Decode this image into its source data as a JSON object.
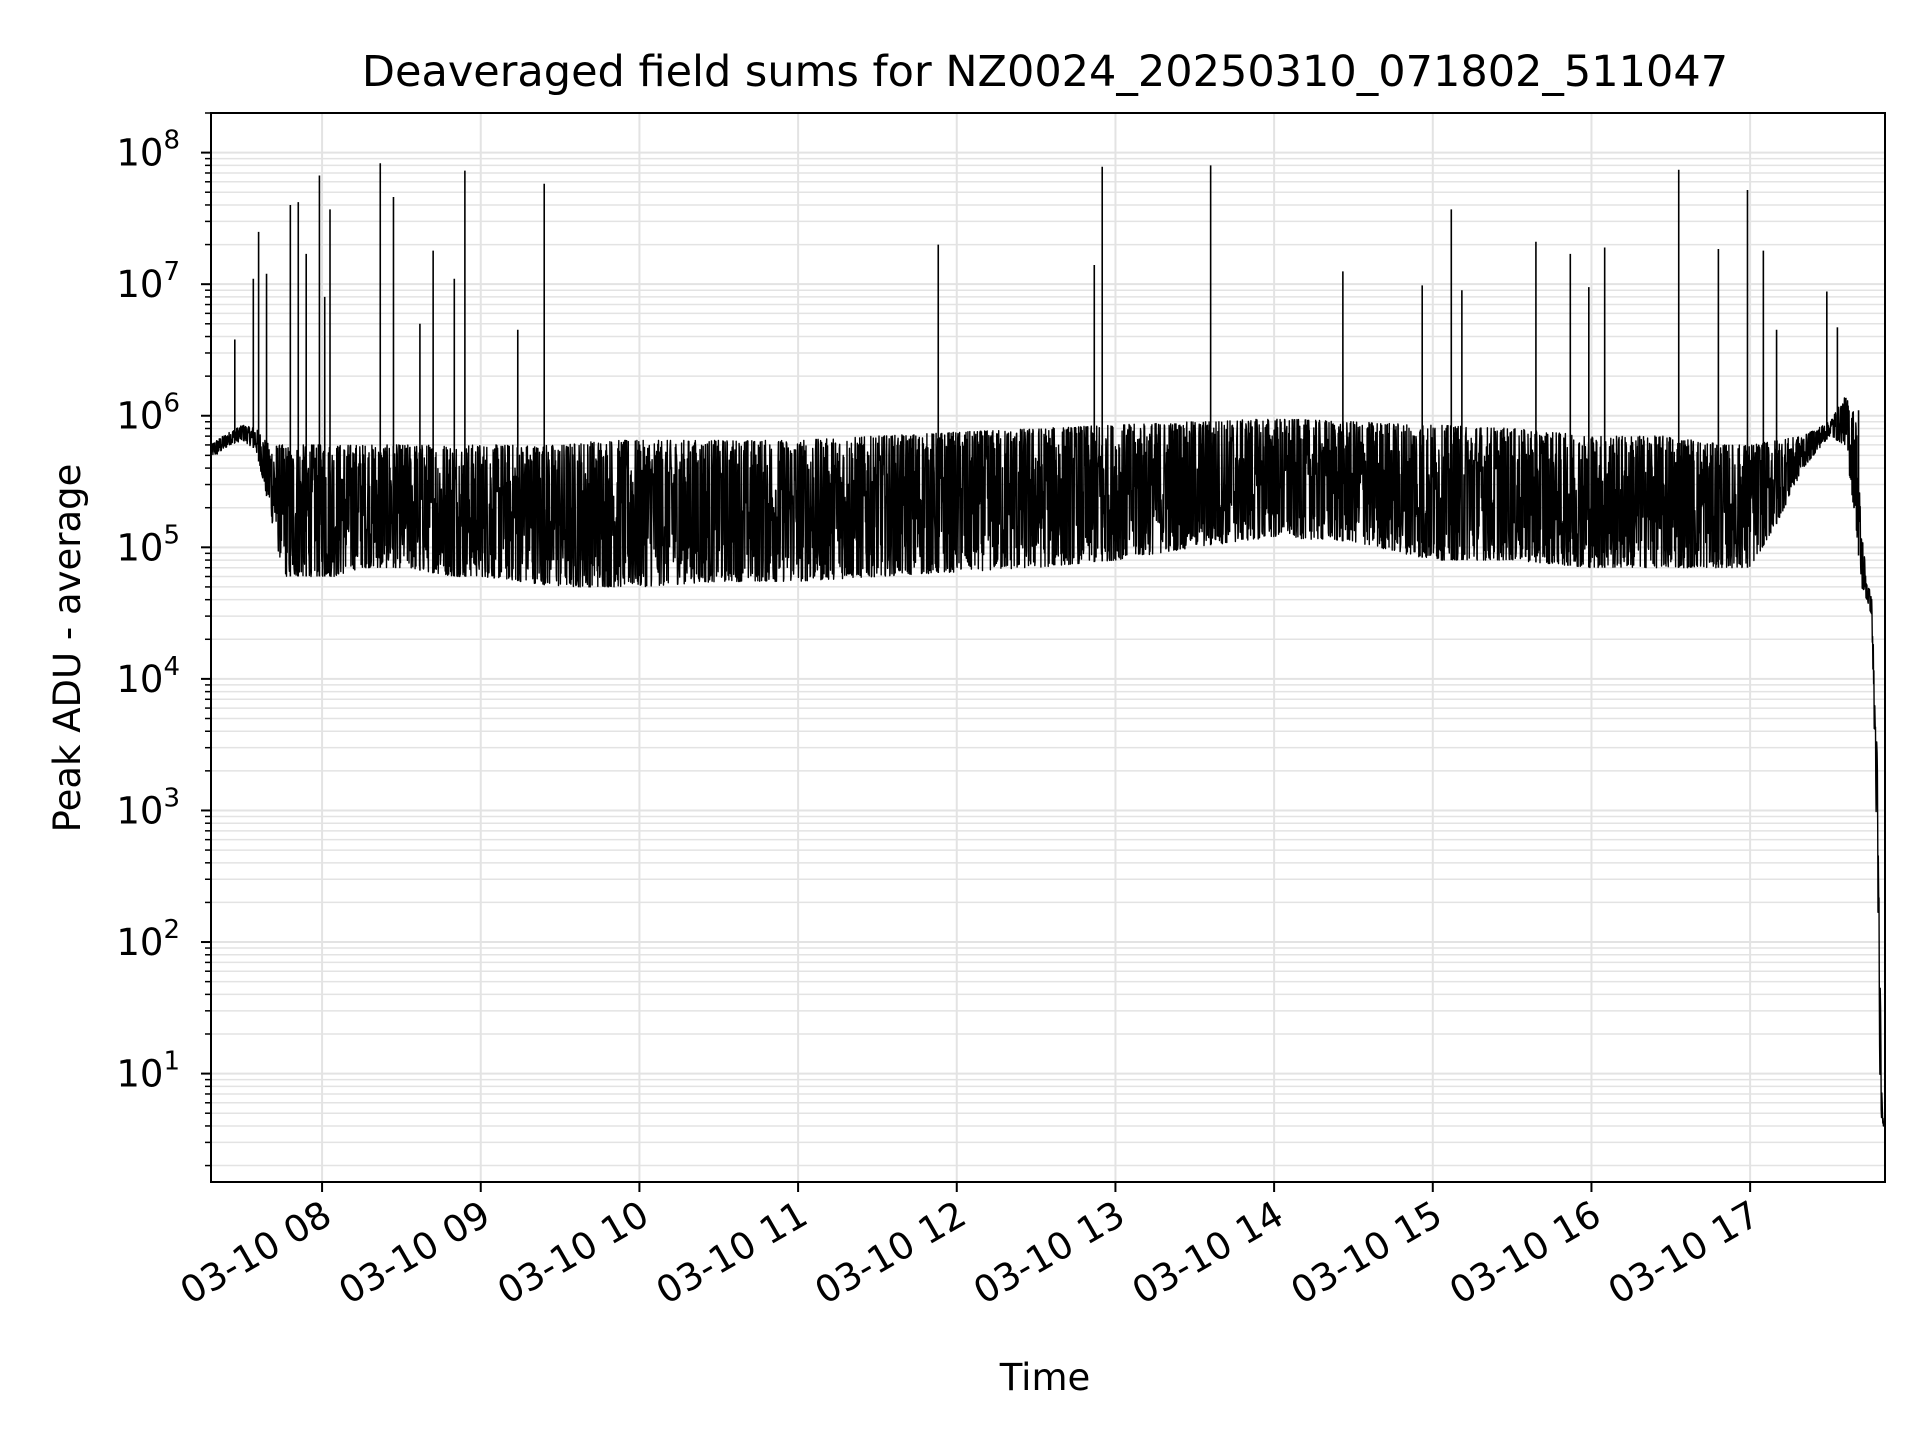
{
  "chart_data": {
    "type": "line",
    "title": "Deaveraged field sums for NZ0024_20250310_071802_511047",
    "xlabel": "Time",
    "ylabel": "Peak ADU - average",
    "yscale": "log",
    "ylim": [
      1.5,
      200000000
    ],
    "xlim": [
      "2025-03-10 07:18",
      "2025-03-10 17:51"
    ],
    "grid": true,
    "line_color": "#000000",
    "grid_color": "#e3e3e3",
    "x_ticks": [
      {
        "value": "2025-03-10 08:00",
        "label": "03-10 08"
      },
      {
        "value": "2025-03-10 09:00",
        "label": "03-10 09"
      },
      {
        "value": "2025-03-10 10:00",
        "label": "03-10 10"
      },
      {
        "value": "2025-03-10 11:00",
        "label": "03-10 11"
      },
      {
        "value": "2025-03-10 12:00",
        "label": "03-10 12"
      },
      {
        "value": "2025-03-10 13:00",
        "label": "03-10 13"
      },
      {
        "value": "2025-03-10 14:00",
        "label": "03-10 14"
      },
      {
        "value": "2025-03-10 15:00",
        "label": "03-10 15"
      },
      {
        "value": "2025-03-10 16:00",
        "label": "03-10 16"
      },
      {
        "value": "2025-03-10 17:00",
        "label": "03-10 17"
      }
    ],
    "y_ticks": [
      {
        "value": 10,
        "base": "10",
        "exp": "1"
      },
      {
        "value": 100,
        "base": "10",
        "exp": "2"
      },
      {
        "value": 1000,
        "base": "10",
        "exp": "3"
      },
      {
        "value": 10000,
        "base": "10",
        "exp": "4"
      },
      {
        "value": 100000,
        "base": "10",
        "exp": "5"
      },
      {
        "value": 1000000,
        "base": "10",
        "exp": "6"
      },
      {
        "value": 10000000,
        "base": "10",
        "exp": "7"
      },
      {
        "value": 100000000,
        "base": "10",
        "exp": "8"
      }
    ],
    "series": [
      {
        "x": [
          "2025-03-10 07:18",
          "2025-03-10 07:20",
          "2025-03-10 07:25",
          "2025-03-10 07:30",
          "2025-03-10 07:35",
          "2025-03-10 07:40",
          "2025-03-10 07:43",
          "2025-03-10 07:46",
          "2025-03-10 07:49",
          "2025-03-10 07:52",
          "2025-03-10 07:55",
          "2025-03-10 07:58",
          "2025-03-10 08:00",
          "2025-03-10 08:05",
          "2025-03-10 08:10",
          "2025-03-10 08:15",
          "2025-03-10 08:20",
          "2025-03-10 08:30",
          "2025-03-10 08:40",
          "2025-03-10 08:50",
          "2025-03-10 09:00",
          "2025-03-10 09:15",
          "2025-03-10 09:30",
          "2025-03-10 09:45",
          "2025-03-10 10:00",
          "2025-03-10 10:30",
          "2025-03-10 11:00",
          "2025-03-10 11:30",
          "2025-03-10 12:00",
          "2025-03-10 12:30",
          "2025-03-10 13:00",
          "2025-03-10 13:30",
          "2025-03-10 14:00",
          "2025-03-10 14:30",
          "2025-03-10 15:00",
          "2025-03-10 15:30",
          "2025-03-10 16:00",
          "2025-03-10 16:30",
          "2025-03-10 16:50",
          "2025-03-10 17:00",
          "2025-03-10 17:10",
          "2025-03-10 17:20",
          "2025-03-10 17:30",
          "2025-03-10 17:36",
          "2025-03-10 17:40",
          "2025-03-10 17:42",
          "2025-03-10 17:44",
          "2025-03-10 17:46",
          "2025-03-10 17:47",
          "2025-03-10 17:48",
          "2025-03-10 17:49",
          "2025-03-10 17:50",
          "2025-03-10 17:51"
        ],
        "y_low": [
          500000,
          500000,
          600000,
          650000,
          550000,
          200000,
          100000,
          60000,
          60000,
          60000,
          60000,
          60000,
          60000,
          60000,
          65000,
          70000,
          70000,
          70000,
          65000,
          60000,
          60000,
          55000,
          50000,
          50000,
          50000,
          55000,
          55000,
          60000,
          65000,
          70000,
          80000,
          100000,
          120000,
          110000,
          80000,
          80000,
          70000,
          70000,
          70000,
          70000,
          150000,
          400000,
          700000,
          600000,
          150000,
          50000,
          40000,
          30000,
          3000,
          500,
          5,
          4,
          4
        ],
        "y_high": [
          600000,
          650000,
          750000,
          850000,
          800000,
          600000,
          600000,
          600000,
          550000,
          600000,
          600000,
          600000,
          600000,
          600000,
          600000,
          600000,
          600000,
          600000,
          600000,
          600000,
          600000,
          600000,
          600000,
          650000,
          650000,
          650000,
          650000,
          700000,
          750000,
          800000,
          850000,
          900000,
          950000,
          900000,
          850000,
          800000,
          700000,
          700000,
          600000,
          600000,
          650000,
          700000,
          900000,
          1400000,
          1000000,
          150000,
          60000,
          40000,
          10000,
          3000,
          100,
          5,
          4
        ],
        "spikes": [
          {
            "x": "2025-03-10 07:27",
            "y": 3800000
          },
          {
            "x": "2025-03-10 07:34",
            "y": 11000000
          },
          {
            "x": "2025-03-10 07:36",
            "y": 25000000
          },
          {
            "x": "2025-03-10 07:39",
            "y": 12000000
          },
          {
            "x": "2025-03-10 07:48",
            "y": 40000000
          },
          {
            "x": "2025-03-10 07:51",
            "y": 42000000
          },
          {
            "x": "2025-03-10 07:54",
            "y": 17000000
          },
          {
            "x": "2025-03-10 07:59",
            "y": 67000000
          },
          {
            "x": "2025-03-10 08:01",
            "y": 8000000
          },
          {
            "x": "2025-03-10 08:03",
            "y": 37000000
          },
          {
            "x": "2025-03-10 08:22",
            "y": 83000000
          },
          {
            "x": "2025-03-10 08:27",
            "y": 46000000
          },
          {
            "x": "2025-03-10 08:37",
            "y": 5000000
          },
          {
            "x": "2025-03-10 08:42",
            "y": 18000000
          },
          {
            "x": "2025-03-10 08:50",
            "y": 11000000
          },
          {
            "x": "2025-03-10 08:54",
            "y": 73000000
          },
          {
            "x": "2025-03-10 09:14",
            "y": 4500000
          },
          {
            "x": "2025-03-10 09:24",
            "y": 58000000
          },
          {
            "x": "2025-03-10 11:53",
            "y": 20000000
          },
          {
            "x": "2025-03-10 12:52",
            "y": 14000000
          },
          {
            "x": "2025-03-10 12:55",
            "y": 78000000
          },
          {
            "x": "2025-03-10 13:36",
            "y": 80000000
          },
          {
            "x": "2025-03-10 14:26",
            "y": 12500000
          },
          {
            "x": "2025-03-10 14:56",
            "y": 9800000
          },
          {
            "x": "2025-03-10 15:07",
            "y": 37000000
          },
          {
            "x": "2025-03-10 15:11",
            "y": 9000000
          },
          {
            "x": "2025-03-10 15:39",
            "y": 21000000
          },
          {
            "x": "2025-03-10 15:52",
            "y": 17000000
          },
          {
            "x": "2025-03-10 15:59",
            "y": 9500000
          },
          {
            "x": "2025-03-10 16:05",
            "y": 19000000
          },
          {
            "x": "2025-03-10 16:33",
            "y": 74000000
          },
          {
            "x": "2025-03-10 16:48",
            "y": 18500000
          },
          {
            "x": "2025-03-10 16:59",
            "y": 52000000
          },
          {
            "x": "2025-03-10 17:05",
            "y": 18000000
          },
          {
            "x": "2025-03-10 17:10",
            "y": 4500000
          },
          {
            "x": "2025-03-10 17:29",
            "y": 8800000
          },
          {
            "x": "2025-03-10 17:33",
            "y": 4700000
          },
          {
            "x": "2025-03-10 17:41",
            "y": 1100000
          }
        ]
      }
    ]
  }
}
